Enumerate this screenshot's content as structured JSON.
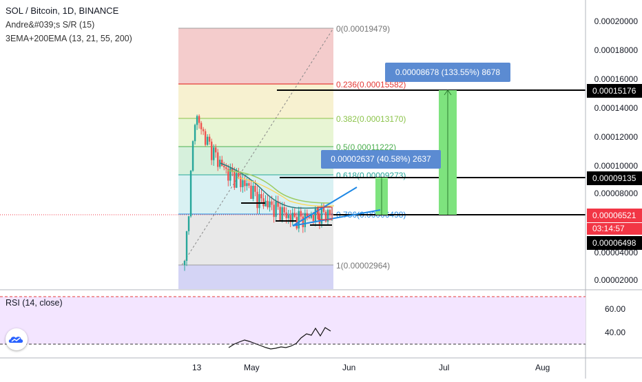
{
  "header": {
    "symbol_line": "SOL / Bitcoin, 1D, BINANCE",
    "indicator_1": "Andre&#039;s S/R (15)",
    "indicator_2": "3EMA+200EMA (13, 21, 55, 200)"
  },
  "price_scale": {
    "ticks": [
      "0.00020000",
      "0.00018000",
      "0.00016000",
      "0.00014000",
      "0.00012000",
      "0.00010000",
      "0.00008000",
      "0.00004000",
      "0.00002000"
    ],
    "tags": [
      {
        "value": "0.00015176",
        "style": "black"
      },
      {
        "value": "0.00009135",
        "style": "black"
      },
      {
        "value": "0.00006521",
        "style": "red"
      },
      {
        "value": "03:14:57",
        "style": "red"
      },
      {
        "value": "0.00006498",
        "style": "black"
      }
    ]
  },
  "fib_levels": [
    {
      "label": "0(0.00019479)",
      "color": "#9e9e9e"
    },
    {
      "label": "0.236(0.00015582)",
      "color": "#e53935"
    },
    {
      "label": "0.382(0.00013170)",
      "color": "#8bc34a"
    },
    {
      "label": "0.5(0.00011222)",
      "color": "#4caf50"
    },
    {
      "label": "0.618(0.00009273)",
      "color": "#26a69a"
    },
    {
      "label": "0.786(0.00006498)",
      "color": "#1e88e5"
    },
    {
      "label": "1(0.00002964)",
      "color": "#9e9e9e"
    }
  ],
  "measure_callouts": [
    {
      "text": "0.00008678 (133.55%) 8678"
    },
    {
      "text": "0.00002637 (40.58%) 2637"
    }
  ],
  "rsi": {
    "label": "RSI (14, close)",
    "ticks": [
      "60.00",
      "40.00"
    ]
  },
  "time_axis": [
    "13",
    "May",
    "Jun",
    "Jul",
    "Aug"
  ],
  "colors": {
    "up": "#26a69a",
    "down": "#ef5350",
    "rsi_band": "#f3e5ff",
    "measure": "#5b8bd2",
    "green_box": "#7ee37e"
  },
  "chart_data": {
    "type": "candlestick",
    "title": "SOL / Bitcoin, 1D, BINANCE",
    "ylim": [
      1.5e-05,
      0.00021
    ],
    "x": [
      "13",
      "May",
      "Jun",
      "Jul",
      "Aug"
    ],
    "approx_close_path": [
      3e-05,
      0.000135,
      0.000118,
      0.000105,
      9.5e-05,
      9e-05,
      8.5e-05,
      7.6e-05,
      7.2e-05,
      6.8e-05,
      6.3e-05,
      6.2e-05,
      6.4e-05,
      6.6e-05,
      6.5e-05
    ]
  }
}
